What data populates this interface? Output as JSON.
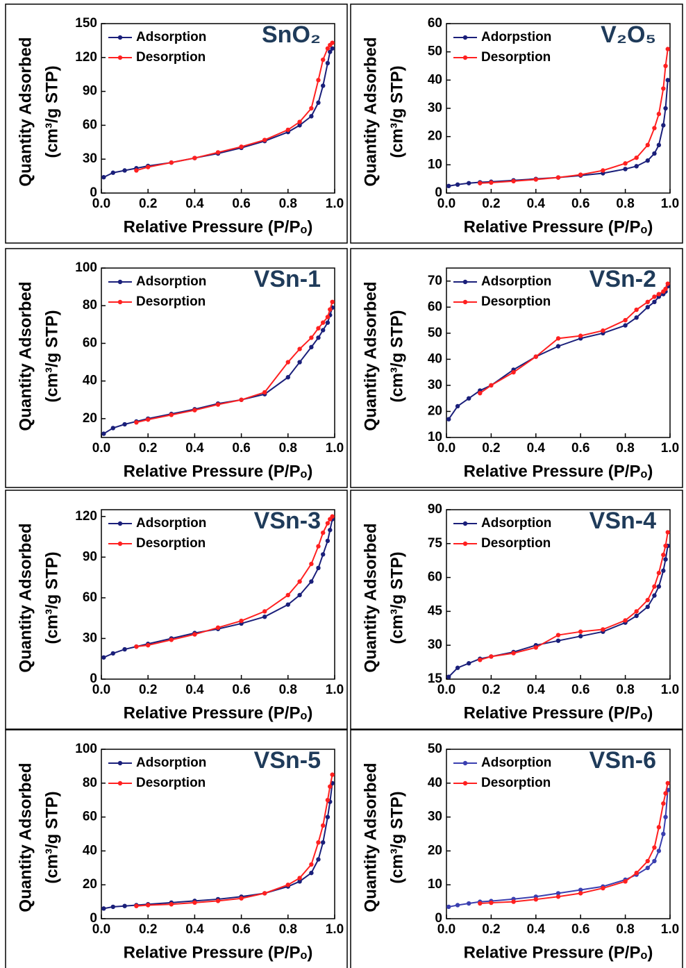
{
  "chart_data": [
    {
      "type": "line",
      "title": "SnO₂",
      "xlabel": "Relative Pressure (P/Pₒ)",
      "ylabel": [
        "Quantity Adsorbed",
        "(cm³/g STP)"
      ],
      "x": [
        0.01,
        0.05,
        0.1,
        0.15,
        0.2,
        0.3,
        0.4,
        0.5,
        0.6,
        0.7,
        0.8,
        0.85,
        0.9,
        0.93,
        0.95,
        0.97,
        0.98,
        0.99
      ],
      "xlim": [
        0,
        1
      ],
      "xticks": [
        {
          "value": 0,
          "label": "0.0"
        },
        0.2,
        0.4,
        0.6,
        0.8,
        {
          "value": 1,
          "label": "1.0"
        }
      ],
      "ylim": [
        0,
        150
      ],
      "yticks": [
        0,
        30,
        60,
        90,
        120,
        150
      ],
      "series": [
        {
          "name": "Adsorption",
          "color": "#1a1f7a",
          "values": [
            14,
            18,
            20,
            22,
            24,
            27,
            31,
            35,
            40,
            46,
            54,
            60,
            68,
            80,
            95,
            115,
            125,
            128
          ]
        },
        {
          "name": "Desorption",
          "color": "#ff2020",
          "values": [
            null,
            null,
            null,
            20,
            23,
            27,
            31,
            36,
            41,
            47,
            56,
            63,
            75,
            100,
            118,
            128,
            131,
            133
          ]
        }
      ]
    },
    {
      "type": "line",
      "title": "V₂O₅",
      "xlabel": "Relative Pressure (P/Pₒ)",
      "ylabel": [
        "Quantity Adsorbed",
        "(cm³/g STP)"
      ],
      "x": [
        0.01,
        0.05,
        0.1,
        0.15,
        0.2,
        0.3,
        0.4,
        0.5,
        0.6,
        0.7,
        0.8,
        0.85,
        0.9,
        0.93,
        0.95,
        0.97,
        0.98,
        0.99
      ],
      "xlim": [
        0,
        1
      ],
      "xticks": [
        {
          "value": 0,
          "label": "0.0"
        },
        0.2,
        0.4,
        0.6,
        0.8,
        {
          "value": 1,
          "label": "1.0"
        }
      ],
      "ylim": [
        0,
        60
      ],
      "yticks": [
        0,
        10,
        20,
        30,
        40,
        50,
        60
      ],
      "series": [
        {
          "name": "Adorpstion",
          "color": "#1a1f7a",
          "values": [
            2.5,
            3,
            3.5,
            3.8,
            4,
            4.5,
            5,
            5.5,
            6.2,
            7,
            8.5,
            9.5,
            11.5,
            14,
            17,
            24,
            30,
            40
          ]
        },
        {
          "name": "Desorption",
          "color": "#ff2020",
          "values": [
            null,
            null,
            null,
            3.5,
            3.7,
            4.2,
            4.8,
            5.5,
            6.5,
            8,
            10.5,
            12.5,
            17,
            23,
            28,
            37,
            45,
            51
          ]
        }
      ]
    },
    {
      "type": "line",
      "title": "VSn-1",
      "xlabel": "Relative Pressure (P/Pₒ)",
      "ylabel": [
        "Quantity Adsorbed",
        "(cm³/g STP)"
      ],
      "x": [
        0.01,
        0.05,
        0.1,
        0.15,
        0.2,
        0.3,
        0.4,
        0.5,
        0.6,
        0.7,
        0.8,
        0.85,
        0.9,
        0.93,
        0.95,
        0.97,
        0.98,
        0.99
      ],
      "xlim": [
        0,
        1
      ],
      "xticks": [
        {
          "value": 0,
          "label": "0.0"
        },
        0.2,
        0.4,
        0.6,
        0.8,
        {
          "value": 1,
          "label": "1.0"
        }
      ],
      "ylim": [
        10,
        100
      ],
      "yticks": [
        20,
        40,
        60,
        80,
        100
      ],
      "series": [
        {
          "name": "Adsorption",
          "color": "#1a1f7a",
          "values": [
            12,
            15,
            17,
            18.5,
            20,
            22.5,
            25,
            28,
            30,
            33,
            42,
            50,
            58,
            63,
            67,
            71,
            75,
            79
          ]
        },
        {
          "name": "Desorption",
          "color": "#ff2020",
          "values": [
            null,
            null,
            null,
            18,
            19.5,
            22,
            24.5,
            27.5,
            30,
            34,
            50,
            57,
            63,
            68,
            71,
            74,
            78,
            82
          ]
        }
      ]
    },
    {
      "type": "line",
      "title": "VSn-2",
      "xlabel": "Relative Pressure (P/Pₒ)",
      "ylabel": [
        "Quantity Adsorbed",
        "(cm³/g STP)"
      ],
      "x": [
        0.01,
        0.05,
        0.1,
        0.15,
        0.2,
        0.3,
        0.4,
        0.5,
        0.6,
        0.7,
        0.8,
        0.85,
        0.9,
        0.93,
        0.95,
        0.97,
        0.98,
        0.99
      ],
      "xlim": [
        0,
        1
      ],
      "xticks": [
        {
          "value": 0,
          "label": "0.0"
        },
        0.2,
        0.4,
        0.6,
        0.8,
        {
          "value": 1,
          "label": "1.0"
        }
      ],
      "ylim": [
        10,
        75
      ],
      "yticks": [
        10,
        20,
        30,
        40,
        50,
        60,
        70
      ],
      "series": [
        {
          "name": "Adsorption",
          "color": "#1a1f7a",
          "values": [
            17,
            22,
            25,
            28,
            30,
            36,
            41,
            45,
            48,
            50,
            53,
            56,
            60,
            62,
            64,
            65,
            66,
            68
          ]
        },
        {
          "name": "Desorption",
          "color": "#ff2020",
          "values": [
            null,
            null,
            null,
            27,
            30,
            35,
            41,
            48,
            49,
            51,
            55,
            59,
            62,
            64,
            65,
            66,
            67,
            69
          ]
        }
      ]
    },
    {
      "type": "line",
      "title": "VSn-3",
      "xlabel": "Relative Pressure (P/Pₒ)",
      "ylabel": [
        "Quantity Adsorbed",
        "(cm³/g STP)"
      ],
      "x": [
        0.01,
        0.05,
        0.1,
        0.15,
        0.2,
        0.3,
        0.4,
        0.5,
        0.6,
        0.7,
        0.8,
        0.85,
        0.9,
        0.93,
        0.95,
        0.97,
        0.98,
        0.99
      ],
      "xlim": [
        0,
        1
      ],
      "xticks": [
        {
          "value": 0,
          "label": "0.0"
        },
        0.2,
        0.4,
        0.6,
        0.8,
        {
          "value": 1,
          "label": "1.0"
        }
      ],
      "ylim": [
        0,
        125
      ],
      "yticks": [
        0,
        30,
        60,
        90,
        120
      ],
      "series": [
        {
          "name": "Adsorption",
          "color": "#1a1f7a",
          "values": [
            16,
            19,
            22,
            24,
            26,
            30,
            34,
            37,
            41,
            46,
            55,
            62,
            72,
            82,
            92,
            102,
            110,
            118
          ]
        },
        {
          "name": "Desorption",
          "color": "#ff2020",
          "values": [
            null,
            null,
            null,
            24,
            25,
            29,
            33,
            38,
            43,
            50,
            62,
            72,
            85,
            98,
            108,
            115,
            118,
            120
          ]
        }
      ]
    },
    {
      "type": "line",
      "title": "VSn-4",
      "xlabel": "Relative Pressure (P/Pₒ)",
      "ylabel": [
        "Quantity Adsorbed",
        "(cm³/g STP)"
      ],
      "x": [
        0.01,
        0.05,
        0.1,
        0.15,
        0.2,
        0.3,
        0.4,
        0.5,
        0.6,
        0.7,
        0.8,
        0.85,
        0.9,
        0.93,
        0.95,
        0.97,
        0.98,
        0.99
      ],
      "xlim": [
        0,
        1
      ],
      "xticks": [
        {
          "value": 0,
          "label": "0.0"
        },
        0.2,
        0.4,
        0.6,
        0.8,
        {
          "value": 1,
          "label": "1.0"
        }
      ],
      "ylim": [
        15,
        90
      ],
      "yticks": [
        15,
        30,
        45,
        60,
        75,
        90
      ],
      "series": [
        {
          "name": "Adsorption",
          "color": "#1a1f7a",
          "values": [
            16,
            20,
            22,
            24,
            25,
            27,
            30,
            32,
            34,
            36,
            40,
            43,
            47,
            52,
            56,
            63,
            68,
            74
          ]
        },
        {
          "name": "Desorption",
          "color": "#ff2020",
          "values": [
            null,
            null,
            null,
            23.5,
            25,
            26.5,
            29,
            34.5,
            36,
            37,
            41,
            45,
            50,
            56,
            62,
            70,
            74,
            80
          ]
        }
      ]
    },
    {
      "type": "line",
      "title": "VSn-5",
      "xlabel": "Relative Pressure (P/Pₒ)",
      "ylabel": [
        "Quantity Adsorbed",
        "(cm³/g STP)"
      ],
      "x": [
        0.01,
        0.05,
        0.1,
        0.15,
        0.2,
        0.3,
        0.4,
        0.5,
        0.6,
        0.7,
        0.8,
        0.85,
        0.9,
        0.93,
        0.95,
        0.97,
        0.98,
        0.99
      ],
      "xlim": [
        0,
        1
      ],
      "xticks": [
        {
          "value": 0,
          "label": "0.0"
        },
        0.2,
        0.4,
        0.6,
        0.8,
        {
          "value": 1,
          "label": "1.0"
        }
      ],
      "ylim": [
        0,
        100
      ],
      "yticks": [
        0,
        20,
        40,
        60,
        80,
        100
      ],
      "series": [
        {
          "name": "Adsorption",
          "color": "#1a1f7a",
          "values": [
            6,
            7,
            7.5,
            8,
            8.5,
            9.5,
            10.5,
            11.5,
            13,
            15,
            19,
            22,
            27,
            35,
            45,
            60,
            69,
            80
          ]
        },
        {
          "name": "Desorption",
          "color": "#ff2020",
          "values": [
            null,
            null,
            null,
            7.5,
            8,
            8.5,
            9.5,
            10.5,
            12,
            15,
            20,
            24,
            32,
            45,
            55,
            70,
            78,
            85
          ]
        }
      ]
    },
    {
      "type": "line",
      "title": "VSn-6",
      "xlabel": "Relative Pressure (P/Pₒ)",
      "ylabel": [
        "Quantity Adsorbed",
        "(cm³/g STP)"
      ],
      "x": [
        0.01,
        0.05,
        0.1,
        0.15,
        0.2,
        0.3,
        0.4,
        0.5,
        0.6,
        0.7,
        0.8,
        0.85,
        0.9,
        0.93,
        0.95,
        0.97,
        0.98,
        0.99
      ],
      "xlim": [
        0,
        1
      ],
      "xticks": [
        {
          "value": 0,
          "label": "0.0"
        },
        0.2,
        0.4,
        0.6,
        0.8,
        {
          "value": 1,
          "label": "1.0"
        }
      ],
      "ylim": [
        0,
        50
      ],
      "yticks": [
        0,
        10,
        20,
        30,
        40,
        50
      ],
      "series": [
        {
          "name": "Adsorption",
          "color": "#3a3fb0",
          "values": [
            3.5,
            4,
            4.5,
            5,
            5.2,
            5.8,
            6.5,
            7.5,
            8.5,
            9.5,
            11.5,
            13,
            15,
            17,
            20,
            25,
            30,
            38
          ]
        },
        {
          "name": "Desorption",
          "color": "#ff2020",
          "values": [
            null,
            null,
            null,
            4.5,
            4.7,
            5,
            5.7,
            6.5,
            7.5,
            9,
            11,
            13.5,
            17,
            21,
            27,
            34,
            37,
            40
          ]
        }
      ]
    }
  ]
}
